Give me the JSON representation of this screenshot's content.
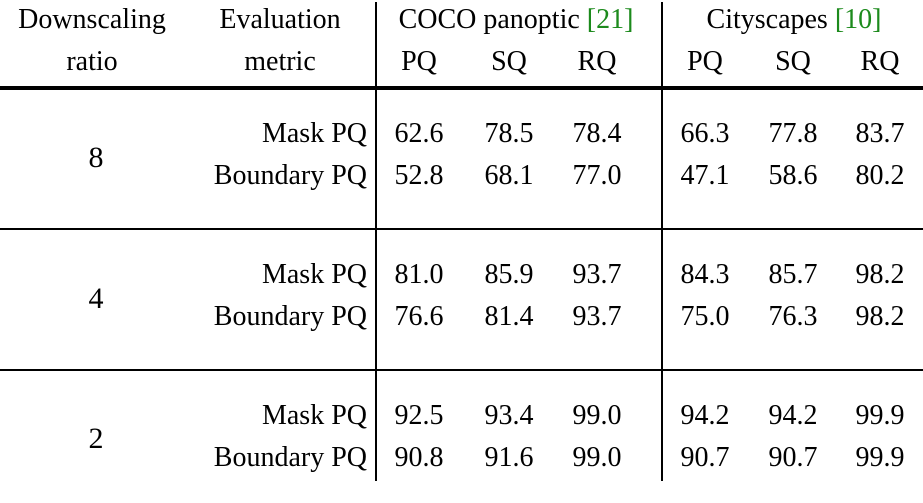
{
  "header": {
    "col1": [
      "Downscaling",
      "ratio"
    ],
    "col2": [
      "Evaluation",
      "metric"
    ],
    "coco": {
      "name": "COCO panoptic ",
      "cite": "[21]"
    },
    "city": {
      "name": "Cityscapes ",
      "cite": "[10]"
    },
    "sub": [
      "PQ",
      "SQ",
      "RQ",
      "PQ",
      "SQ",
      "RQ"
    ]
  },
  "groups": [
    {
      "ratio": "8",
      "rows": [
        {
          "metric": "Mask PQ",
          "values": [
            "62.6",
            "78.5",
            "78.4",
            "66.3",
            "77.8",
            "83.7"
          ]
        },
        {
          "metric": "Boundary PQ",
          "values": [
            "52.8",
            "68.1",
            "77.0",
            "47.1",
            "58.6",
            "80.2"
          ]
        }
      ]
    },
    {
      "ratio": "4",
      "rows": [
        {
          "metric": "Mask PQ",
          "values": [
            "81.0",
            "85.9",
            "93.7",
            "84.3",
            "85.7",
            "98.2"
          ]
        },
        {
          "metric": "Boundary PQ",
          "values": [
            "76.6",
            "81.4",
            "93.7",
            "75.0",
            "76.3",
            "98.2"
          ]
        }
      ]
    },
    {
      "ratio": "2",
      "rows": [
        {
          "metric": "Mask PQ",
          "values": [
            "92.5",
            "93.4",
            "99.0",
            "94.2",
            "94.2",
            "99.9"
          ]
        },
        {
          "metric": "Boundary PQ",
          "values": [
            "90.8",
            "91.6",
            "99.0",
            "90.7",
            "90.7",
            "99.9"
          ]
        }
      ]
    }
  ]
}
